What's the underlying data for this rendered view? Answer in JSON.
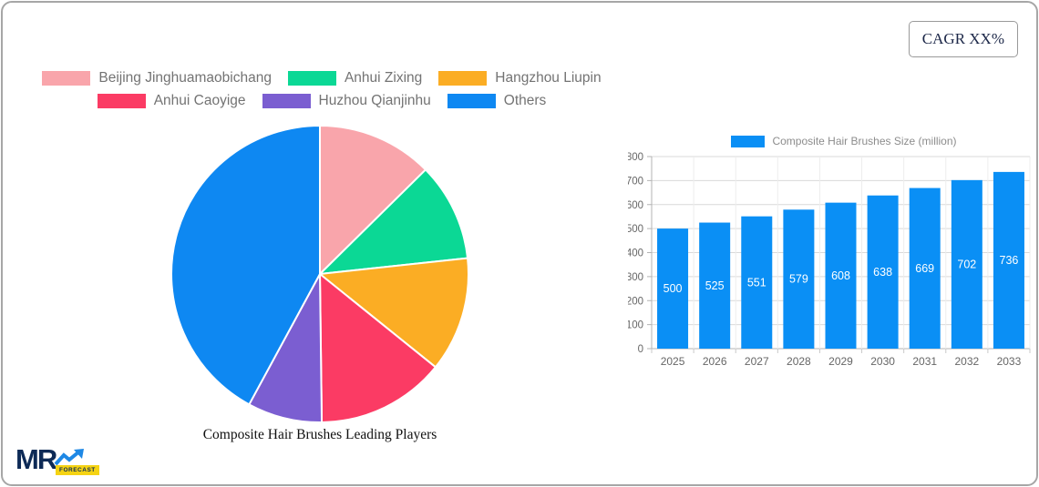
{
  "card": {
    "cagr_label": "CAGR XX%"
  },
  "logo": {
    "mr": "MR",
    "forecast": "FORECAST"
  },
  "chart_data": [
    {
      "type": "pie",
      "title": "Composite Hair Brushes Leading Players",
      "labels": [
        "Beijing Jinghuamaobichang",
        "Anhui Zixing",
        "Hangzhou Liupin",
        "Anhui Caoyige",
        "Huzhou Qianjinhu",
        "Others"
      ],
      "values": [
        12.6,
        10.7,
        12.5,
        14.0,
        8.1,
        42.1
      ],
      "colors": [
        "#f9a5ab",
        "#0bd895",
        "#fbad24",
        "#fb3b64",
        "#7b5ed1",
        "#0e88f2"
      ],
      "legend_rows": [
        [
          0,
          1,
          2
        ],
        [
          3,
          4,
          5
        ]
      ],
      "legend_position": "top",
      "start_angle_deg": 0,
      "direction": "clockwise",
      "slice_border_color": "#ffffff"
    },
    {
      "type": "bar",
      "categories": [
        "2025",
        "2026",
        "2027",
        "2028",
        "2029",
        "2030",
        "2031",
        "2032",
        "2033"
      ],
      "series": [
        {
          "name": "Composite Hair Brushes Size (million)",
          "values": [
            500,
            525,
            551,
            579,
            608,
            638,
            669,
            702,
            736
          ]
        }
      ],
      "bar_color": "#0a8ff5",
      "ylim": [
        0,
        800
      ],
      "ytick_step": 100,
      "grid": true,
      "legend_position": "top",
      "value_labels": "inside-middle-white"
    }
  ]
}
